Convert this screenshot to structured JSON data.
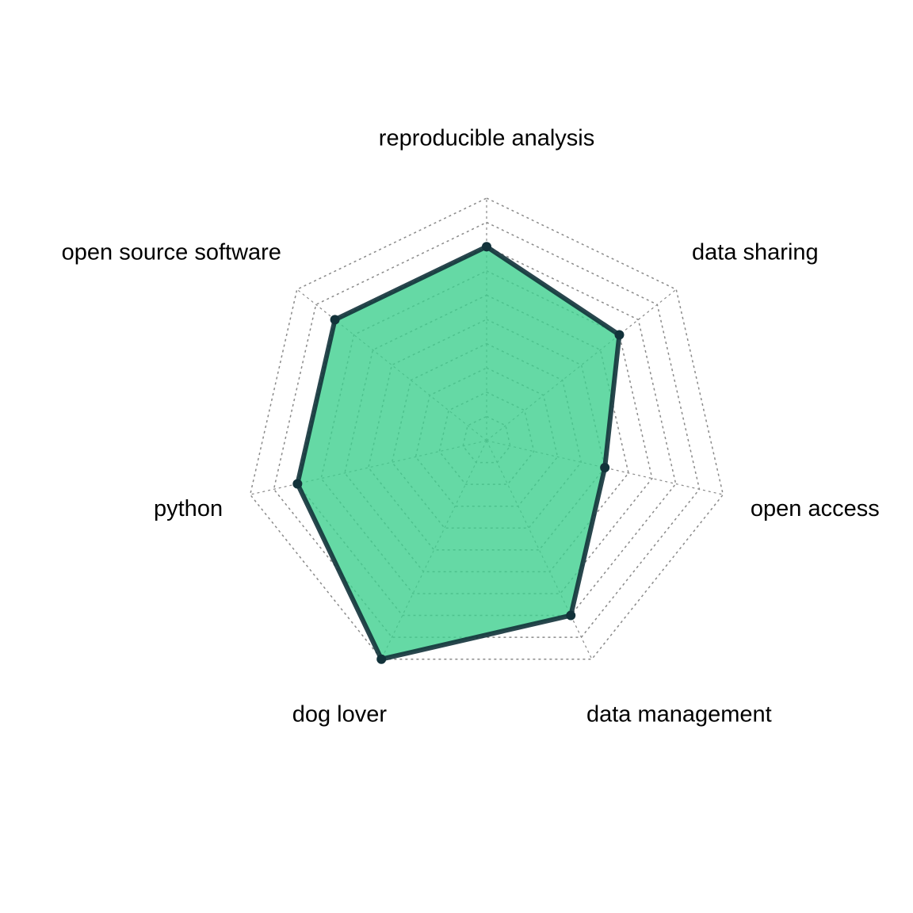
{
  "chart_data": {
    "type": "radar",
    "axes": [
      "reproducible analysis",
      "data sharing",
      "open access",
      "data management",
      "dog lover",
      "python",
      "open source software"
    ],
    "values": [
      0.8,
      0.7,
      0.5,
      0.8,
      1.0,
      0.8,
      0.8
    ],
    "range": [
      0,
      1
    ],
    "grid_levels": 10,
    "grid": true,
    "legend": "none",
    "colors": {
      "fill": "#3fcf8e",
      "line": "#12323a",
      "grid": "#8a8a8a"
    }
  }
}
